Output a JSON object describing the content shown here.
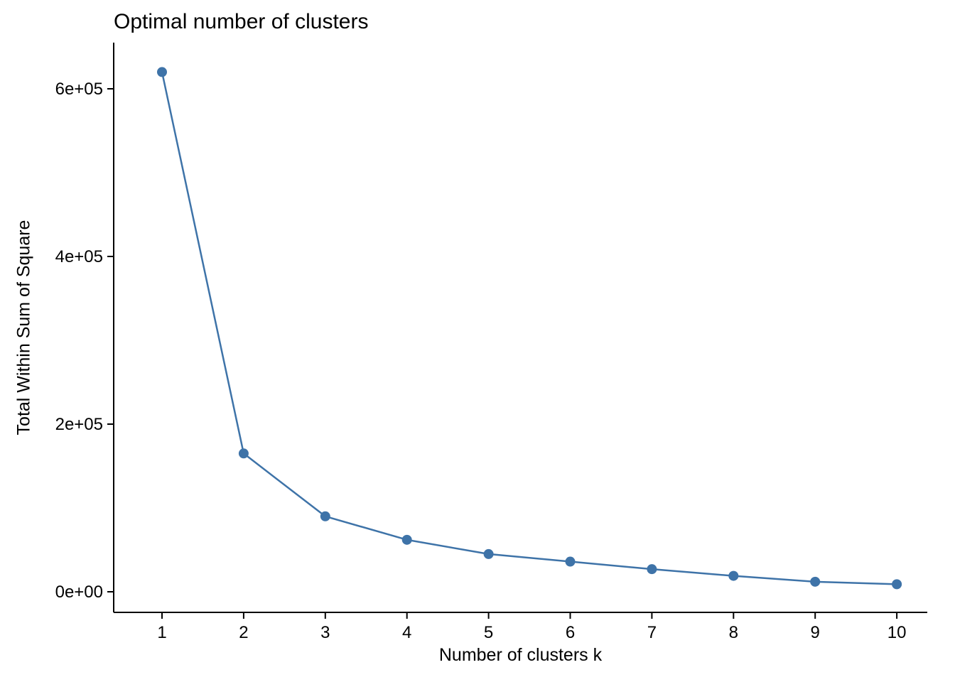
{
  "chart_data": {
    "type": "line",
    "title": "Optimal number of clusters",
    "xlabel": "Number of clusters k",
    "ylabel": "Total Within Sum of Square",
    "series": [
      {
        "name": "total-within-sum-of-square",
        "x": [
          1,
          2,
          3,
          4,
          5,
          6,
          7,
          8,
          9,
          10
        ],
        "y": [
          620000,
          165000,
          90000,
          62000,
          45000,
          36000,
          27000,
          19000,
          12000,
          9000
        ]
      }
    ],
    "x_ticks": {
      "values": [
        1,
        2,
        3,
        4,
        5,
        6,
        7,
        8,
        9,
        10
      ],
      "labels": [
        "1",
        "2",
        "3",
        "4",
        "5",
        "6",
        "7",
        "8",
        "9",
        "10"
      ]
    },
    "y_ticks": {
      "values": [
        0,
        200000,
        400000,
        600000
      ],
      "labels": [
        "0e+00",
        "2e+05",
        "4e+05",
        "6e+05"
      ]
    },
    "xlim": [
      0.41,
      10.38
    ],
    "ylim": [
      0,
      650000
    ],
    "grid": false,
    "legend": false,
    "line_color": "#3e73a8",
    "point_color": "#3e73a8",
    "axis_color": "#000000",
    "background": "#ffffff"
  }
}
